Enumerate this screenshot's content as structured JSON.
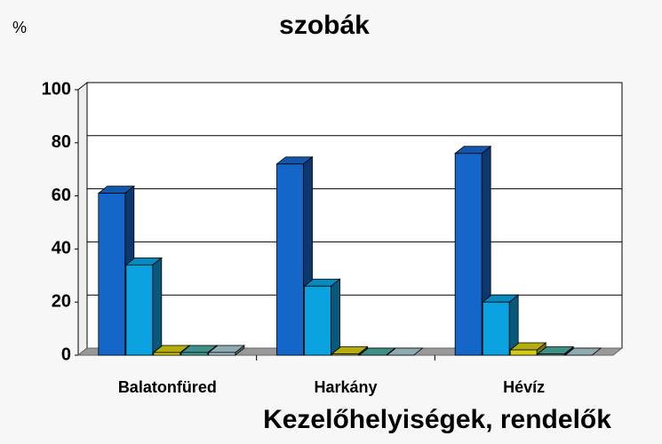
{
  "chart_data": {
    "type": "bar3d",
    "title": "szobák",
    "y_unit_label": "%",
    "x_label": "Kezelőhelyiségek, rendelők",
    "categories": [
      "Balatonfüred",
      "Harkány",
      "Hévíz"
    ],
    "series": [
      {
        "color": "#1566c9",
        "values": [
          61,
          72,
          76
        ]
      },
      {
        "color": "#0aa2e0",
        "values": [
          34,
          26,
          20
        ]
      },
      {
        "color": "#d4cc10",
        "values": [
          1,
          0.5,
          2
        ]
      },
      {
        "color": "#48a8a0",
        "values": [
          1,
          0,
          0.5
        ]
      },
      {
        "color": "#a8c8d0",
        "values": [
          1,
          0,
          0
        ]
      }
    ],
    "ylim": [
      0,
      100
    ],
    "yticks": [
      0,
      20,
      40,
      60,
      80,
      100
    ],
    "grid": true
  }
}
